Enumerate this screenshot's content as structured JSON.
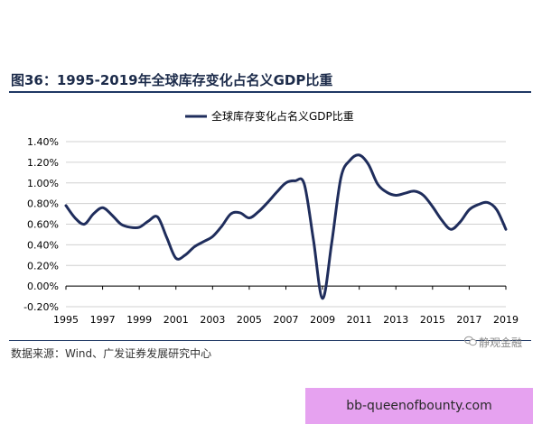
{
  "figure": {
    "title": "图36：1995-2019年全球库存变化占名义GDP比重",
    "source": "数据来源：Wind、广发证券发展研究中心",
    "watermark": "静观金融",
    "tag": "bb-queenofbounty.com"
  },
  "colors": {
    "line": "#1f2d5c",
    "grid": "#d0d0d0",
    "axis": "#000000",
    "rule": "#1f3864",
    "tag_bg": "#e6a2f0"
  },
  "chart_data": {
    "type": "line",
    "title": "",
    "xlabel": "",
    "ylabel": "",
    "legend_position": "top-center",
    "grid": true,
    "xlim": [
      1995,
      2019
    ],
    "ylim": [
      -0.2,
      1.4
    ],
    "x_ticks": [
      "1995",
      "1997",
      "1999",
      "2001",
      "2003",
      "2005",
      "2007",
      "2009",
      "2011",
      "2013",
      "2015",
      "2017",
      "2019"
    ],
    "y_ticks": [
      "-0.20%",
      "0.00%",
      "0.20%",
      "0.40%",
      "0.60%",
      "0.80%",
      "1.00%",
      "1.20%",
      "1.40%"
    ],
    "series": [
      {
        "name": "全球库存变化占名义GDP比重",
        "x": [
          1995,
          1995.5,
          1996,
          1996.5,
          1997,
          1997.5,
          1998,
          1998.5,
          1999,
          1999.5,
          2000,
          2000.5,
          2001,
          2001.5,
          2002,
          2002.5,
          2003,
          2003.5,
          2004,
          2004.5,
          2005,
          2005.5,
          2006,
          2006.5,
          2007,
          2007.5,
          2008,
          2008.5,
          2009,
          2009.5,
          2010,
          2010.5,
          2011,
          2011.5,
          2012,
          2012.5,
          2013,
          2013.5,
          2014,
          2014.5,
          2015,
          2015.5,
          2016,
          2016.5,
          2017,
          2017.5,
          2018,
          2018.5,
          2019
        ],
        "values": [
          0.78,
          0.66,
          0.6,
          0.7,
          0.76,
          0.69,
          0.6,
          0.57,
          0.57,
          0.63,
          0.67,
          0.47,
          0.27,
          0.3,
          0.38,
          0.43,
          0.48,
          0.58,
          0.7,
          0.71,
          0.66,
          0.72,
          0.81,
          0.91,
          1.0,
          1.02,
          0.99,
          0.45,
          -0.12,
          0.42,
          1.05,
          1.22,
          1.27,
          1.18,
          0.99,
          0.91,
          0.88,
          0.9,
          0.92,
          0.88,
          0.77,
          0.64,
          0.55,
          0.62,
          0.74,
          0.79,
          0.81,
          0.74,
          0.55
        ]
      }
    ]
  }
}
